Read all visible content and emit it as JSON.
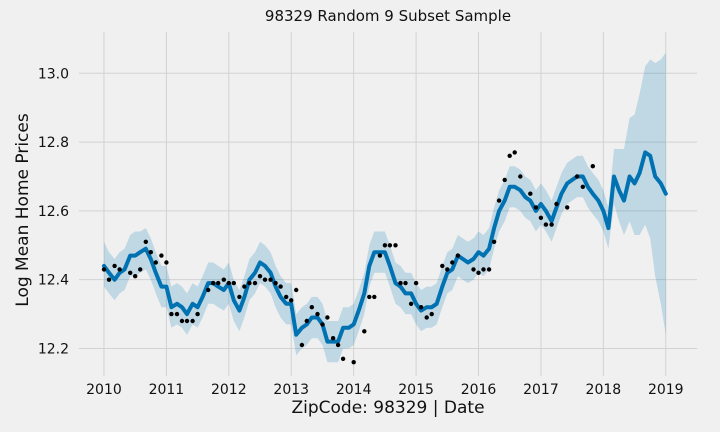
{
  "chart_data": {
    "type": "line",
    "title": "98329 Random 9 Subset Sample",
    "xlabel": "ZipCode: 98329 | Date",
    "ylabel": "Log Mean Home Prices",
    "xlim": [
      2009.6,
      2019.5
    ],
    "ylim": [
      12.12,
      13.12
    ],
    "x_ticks": [
      2010,
      2011,
      2012,
      2013,
      2014,
      2015,
      2016,
      2017,
      2018,
      2019
    ],
    "y_ticks": [
      12.2,
      12.4,
      12.6,
      12.8,
      13.0
    ],
    "y_tick_labels": [
      "12.2",
      "12.4",
      "12.6",
      "12.8",
      "13.0"
    ],
    "grid": true,
    "colors": {
      "forecast": "#0072B2",
      "band": "#0072B2",
      "observed": "#000000",
      "background": "#f0f0f0"
    },
    "forecast": {
      "x": [
        2010.0,
        2010.08,
        2010.17,
        2010.25,
        2010.33,
        2010.42,
        2010.5,
        2010.58,
        2010.67,
        2010.75,
        2010.83,
        2010.92,
        2011.0,
        2011.08,
        2011.17,
        2011.25,
        2011.33,
        2011.42,
        2011.5,
        2011.58,
        2011.67,
        2011.75,
        2011.83,
        2011.92,
        2012.0,
        2012.08,
        2012.17,
        2012.25,
        2012.33,
        2012.42,
        2012.5,
        2012.58,
        2012.67,
        2012.75,
        2012.83,
        2012.92,
        2013.0,
        2013.08,
        2013.17,
        2013.25,
        2013.33,
        2013.42,
        2013.5,
        2013.58,
        2013.67,
        2013.75,
        2013.83,
        2013.92,
        2014.0,
        2014.08,
        2014.17,
        2014.25,
        2014.33,
        2014.42,
        2014.5,
        2014.58,
        2014.67,
        2014.75,
        2014.83,
        2014.92,
        2015.0,
        2015.08,
        2015.17,
        2015.25,
        2015.33,
        2015.42,
        2015.5,
        2015.58,
        2015.67,
        2015.75,
        2015.83,
        2015.92,
        2016.0,
        2016.08,
        2016.17,
        2016.25,
        2016.33,
        2016.42,
        2016.5,
        2016.58,
        2016.67,
        2016.75,
        2016.83,
        2016.92,
        2017.0,
        2017.08,
        2017.17,
        2017.25,
        2017.33,
        2017.42,
        2017.5,
        2017.58,
        2017.67,
        2017.75,
        2017.83,
        2017.92,
        2018.0,
        2018.08,
        2018.17,
        2018.25,
        2018.33,
        2018.42,
        2018.5,
        2018.58,
        2018.67,
        2018.75,
        2018.83,
        2018.92,
        2019.0
      ],
      "yhat": [
        12.44,
        12.42,
        12.4,
        12.42,
        12.43,
        12.47,
        12.47,
        12.48,
        12.49,
        12.46,
        12.42,
        12.38,
        12.38,
        12.32,
        12.33,
        12.32,
        12.3,
        12.33,
        12.32,
        12.35,
        12.39,
        12.39,
        12.38,
        12.37,
        12.39,
        12.34,
        12.31,
        12.35,
        12.4,
        12.42,
        12.45,
        12.44,
        12.42,
        12.38,
        12.35,
        12.33,
        12.33,
        12.24,
        12.26,
        12.27,
        12.29,
        12.29,
        12.27,
        12.22,
        12.22,
        12.22,
        12.26,
        12.26,
        12.27,
        12.31,
        12.36,
        12.44,
        12.48,
        12.48,
        12.48,
        12.44,
        12.39,
        12.38,
        12.36,
        12.36,
        12.33,
        12.31,
        12.32,
        12.32,
        12.33,
        12.38,
        12.42,
        12.43,
        12.47,
        12.46,
        12.45,
        12.46,
        12.48,
        12.47,
        12.49,
        12.55,
        12.6,
        12.63,
        12.67,
        12.67,
        12.66,
        12.64,
        12.63,
        12.6,
        12.62,
        12.6,
        12.57,
        12.61,
        12.65,
        12.68,
        12.69,
        12.7,
        12.7,
        12.67,
        12.65,
        12.63,
        12.6,
        12.55,
        12.7,
        12.66,
        12.63,
        12.7,
        12.68,
        12.71,
        12.77,
        12.76,
        12.7,
        12.68,
        12.65
      ],
      "yhat_lower": [
        12.38,
        12.36,
        12.34,
        12.36,
        12.37,
        12.41,
        12.41,
        12.42,
        12.43,
        12.4,
        12.36,
        12.32,
        12.32,
        12.26,
        12.27,
        12.26,
        12.24,
        12.27,
        12.26,
        12.29,
        12.33,
        12.33,
        12.32,
        12.31,
        12.33,
        12.28,
        12.25,
        12.29,
        12.34,
        12.36,
        12.39,
        12.38,
        12.36,
        12.32,
        12.29,
        12.27,
        12.27,
        12.18,
        12.2,
        12.21,
        12.23,
        12.23,
        12.21,
        12.16,
        12.16,
        12.16,
        12.2,
        12.2,
        12.21,
        12.25,
        12.3,
        12.38,
        12.42,
        12.42,
        12.42,
        12.38,
        12.33,
        12.32,
        12.3,
        12.3,
        12.27,
        12.25,
        12.26,
        12.26,
        12.27,
        12.32,
        12.36,
        12.37,
        12.41,
        12.4,
        12.39,
        12.4,
        12.42,
        12.41,
        12.43,
        12.49,
        12.54,
        12.57,
        12.61,
        12.61,
        12.6,
        12.58,
        12.57,
        12.54,
        12.56,
        12.54,
        12.51,
        12.55,
        12.59,
        12.62,
        12.63,
        12.64,
        12.64,
        12.61,
        12.59,
        12.57,
        12.54,
        12.49,
        12.62,
        12.57,
        12.53,
        12.57,
        12.53,
        12.53,
        12.56,
        12.52,
        12.41,
        12.33,
        12.24
      ],
      "yhat_upper": [
        12.51,
        12.48,
        12.46,
        12.48,
        12.49,
        12.53,
        12.54,
        12.54,
        12.55,
        12.52,
        12.48,
        12.44,
        12.44,
        12.38,
        12.39,
        12.38,
        12.36,
        12.39,
        12.38,
        12.41,
        12.45,
        12.45,
        12.44,
        12.43,
        12.45,
        12.4,
        12.37,
        12.41,
        12.46,
        12.48,
        12.51,
        12.5,
        12.48,
        12.44,
        12.41,
        12.39,
        12.39,
        12.3,
        12.32,
        12.33,
        12.35,
        12.35,
        12.33,
        12.28,
        12.28,
        12.28,
        12.32,
        12.32,
        12.33,
        12.37,
        12.42,
        12.5,
        12.54,
        12.54,
        12.54,
        12.5,
        12.45,
        12.44,
        12.42,
        12.42,
        12.39,
        12.37,
        12.38,
        12.38,
        12.39,
        12.44,
        12.48,
        12.49,
        12.53,
        12.52,
        12.51,
        12.52,
        12.54,
        12.53,
        12.55,
        12.61,
        12.66,
        12.69,
        12.73,
        12.73,
        12.72,
        12.7,
        12.69,
        12.66,
        12.68,
        12.66,
        12.63,
        12.67,
        12.71,
        12.74,
        12.75,
        12.76,
        12.76,
        12.73,
        12.71,
        12.69,
        12.66,
        12.61,
        12.78,
        12.78,
        12.78,
        12.87,
        12.88,
        12.94,
        13.02,
        13.04,
        13.03,
        13.04,
        13.06
      ]
    },
    "observed": {
      "x": [
        2010.0,
        2010.08,
        2010.17,
        2010.25,
        2010.42,
        2010.5,
        2010.58,
        2010.67,
        2010.75,
        2010.83,
        2010.92,
        2011.0,
        2011.08,
        2011.17,
        2011.25,
        2011.33,
        2011.42,
        2011.5,
        2011.67,
        2011.75,
        2011.83,
        2011.92,
        2012.0,
        2012.08,
        2012.17,
        2012.25,
        2012.33,
        2012.42,
        2012.5,
        2012.58,
        2012.67,
        2012.75,
        2012.83,
        2012.92,
        2013.0,
        2013.08,
        2013.17,
        2013.25,
        2013.33,
        2013.42,
        2013.5,
        2013.58,
        2013.67,
        2013.75,
        2013.83,
        2014.0,
        2014.17,
        2014.25,
        2014.33,
        2014.42,
        2014.5,
        2014.58,
        2014.67,
        2014.75,
        2014.83,
        2014.92,
        2015.0,
        2015.08,
        2015.17,
        2015.25,
        2015.42,
        2015.5,
        2015.58,
        2015.67,
        2015.92,
        2016.0,
        2016.08,
        2016.17,
        2016.25,
        2016.33,
        2016.42,
        2016.5,
        2016.58,
        2016.67,
        2016.83,
        2016.92,
        2017.0,
        2017.08,
        2017.17,
        2017.25,
        2017.42,
        2017.58,
        2017.67,
        2017.83
      ],
      "y": [
        12.43,
        12.4,
        12.44,
        12.43,
        12.42,
        12.41,
        12.43,
        12.51,
        12.48,
        12.45,
        12.47,
        12.45,
        12.3,
        12.3,
        12.28,
        12.28,
        12.28,
        12.3,
        12.37,
        12.39,
        12.39,
        12.4,
        12.39,
        12.39,
        12.35,
        12.38,
        12.39,
        12.39,
        12.41,
        12.4,
        12.4,
        12.39,
        12.38,
        12.35,
        12.34,
        12.37,
        12.21,
        12.28,
        12.32,
        12.3,
        12.27,
        12.29,
        12.23,
        12.21,
        12.17,
        12.16,
        12.25,
        12.35,
        12.35,
        12.47,
        12.5,
        12.5,
        12.5,
        12.39,
        12.39,
        12.33,
        12.39,
        12.32,
        12.29,
        12.3,
        12.44,
        12.43,
        12.45,
        12.47,
        12.43,
        12.42,
        12.43,
        12.43,
        12.51,
        12.63,
        12.69,
        12.76,
        12.77,
        12.7,
        12.65,
        12.61,
        12.58,
        12.56,
        12.56,
        12.62,
        12.61,
        12.7,
        12.67,
        12.73
      ]
    }
  }
}
